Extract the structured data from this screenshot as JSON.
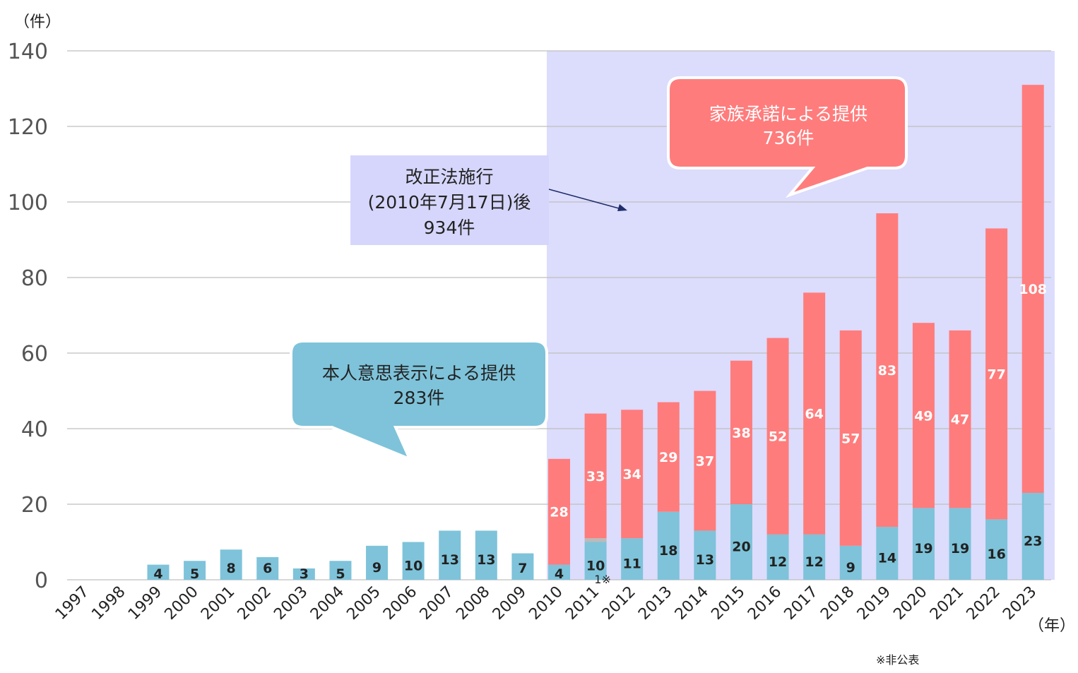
{
  "chart_data": {
    "type": "bar",
    "stacked": true,
    "categories": [
      "1997",
      "1998",
      "1999",
      "2000",
      "2001",
      "2002",
      "2003",
      "2004",
      "2005",
      "2006",
      "2007",
      "2008",
      "2009",
      "2010",
      "2011",
      "2012",
      "2013",
      "2014",
      "2015",
      "2016",
      "2017",
      "2018",
      "2019",
      "2020",
      "2021",
      "2022",
      "2023"
    ],
    "series": [
      {
        "name": "本人意思表示による提供",
        "color": "#7EC3DA",
        "values": [
          0,
          0,
          4,
          5,
          8,
          6,
          3,
          5,
          9,
          10,
          13,
          13,
          7,
          4,
          10,
          11,
          18,
          13,
          20,
          12,
          12,
          9,
          14,
          19,
          19,
          16,
          23
        ]
      },
      {
        "name": "非公表",
        "color": "#BBBBBB",
        "values": [
          0,
          0,
          0,
          0,
          0,
          0,
          0,
          0,
          0,
          0,
          0,
          0,
          0,
          0,
          1,
          0,
          0,
          0,
          0,
          0,
          0,
          0,
          0,
          0,
          0,
          0,
          0
        ]
      },
      {
        "name": "家族承諾による提供",
        "color": "#FF7C7C",
        "values": [
          0,
          0,
          0,
          0,
          0,
          0,
          0,
          0,
          0,
          0,
          0,
          0,
          0,
          28,
          33,
          34,
          29,
          37,
          38,
          52,
          64,
          57,
          83,
          49,
          47,
          77,
          108
        ]
      }
    ],
    "ylim": [
      0,
      140
    ],
    "yticks": [
      "0",
      "20",
      "40",
      "60",
      "80",
      "100",
      "120",
      "140"
    ],
    "y_unit": "（件）",
    "x_unit": "（年）",
    "grid": true,
    "highlight_from": "2010",
    "highlight_color": "#DCDCFC",
    "small_label": "1※",
    "footnote": "※非公表"
  },
  "annotations": {
    "law": {
      "line1": "改正法施行",
      "line2": "(2010年7月17日)後",
      "line3": "934件"
    },
    "family": {
      "line1": "家族承諾による提供",
      "line2": "736件"
    },
    "self": {
      "line1": "本人意思表示による提供",
      "line2": "283件"
    }
  }
}
